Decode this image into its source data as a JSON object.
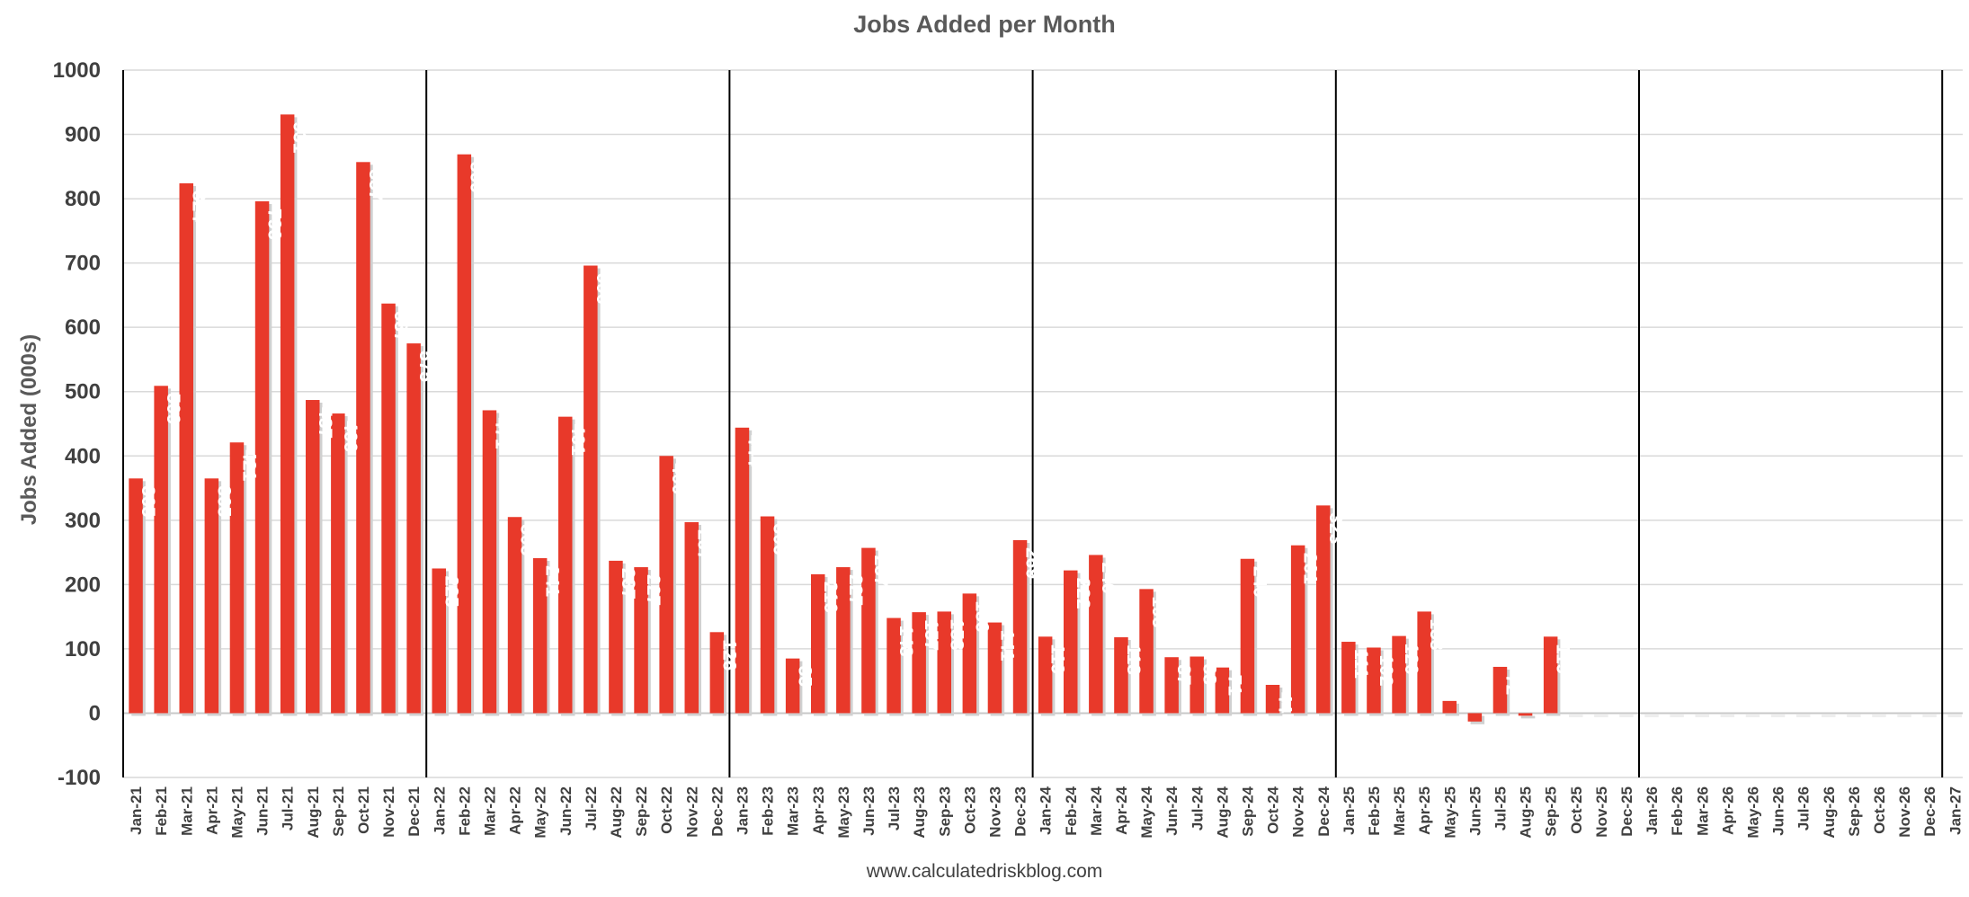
{
  "chart_data": {
    "type": "bar",
    "title": "Jobs Added per Month",
    "xlabel": "",
    "ylabel": "Jobs Added (000s)",
    "source": "www.calculatedriskblog.com",
    "ylim": [
      -100,
      1000
    ],
    "yticks": [
      -100,
      0,
      100,
      200,
      300,
      400,
      500,
      600,
      700,
      800,
      900,
      1000
    ],
    "bar_color": "#e8392a",
    "label_color": "#ffffff",
    "grid": true,
    "year_dividers": [
      "Jan-21",
      "Jan-22",
      "Jan-23",
      "Jan-24",
      "Jan-25",
      "Jan-26",
      "Jan-27"
    ],
    "categories": [
      "Jan-21",
      "Feb-21",
      "Mar-21",
      "Apr-21",
      "May-21",
      "Jun-21",
      "Jul-21",
      "Aug-21",
      "Sep-21",
      "Oct-21",
      "Nov-21",
      "Dec-21",
      "Jan-22",
      "Feb-22",
      "Mar-22",
      "Apr-22",
      "May-22",
      "Jun-22",
      "Jul-22",
      "Aug-22",
      "Sep-22",
      "Oct-22",
      "Nov-22",
      "Dec-22",
      "Jan-23",
      "Feb-23",
      "Mar-23",
      "Apr-23",
      "May-23",
      "Jun-23",
      "Jul-23",
      "Aug-23",
      "Sep-23",
      "Oct-23",
      "Nov-23",
      "Dec-23",
      "Jan-24",
      "Feb-24",
      "Mar-24",
      "Apr-24",
      "May-24",
      "Jun-24",
      "Jul-24",
      "Aug-24",
      "Sep-24",
      "Oct-24",
      "Nov-24",
      "Dec-24",
      "Jan-25",
      "Feb-25",
      "Mar-25",
      "Apr-25",
      "May-25",
      "Jun-25",
      "Jul-25",
      "Aug-25",
      "Sep-25",
      "Oct-25",
      "Nov-25",
      "Dec-25",
      "Jan-26",
      "Feb-26",
      "Mar-26",
      "Apr-26",
      "May-26",
      "Jun-26",
      "Jul-26",
      "Aug-26",
      "Sep-26",
      "Oct-26",
      "Nov-26",
      "Dec-26",
      "Jan-27"
    ],
    "values": [
      365,
      509,
      824,
      365,
      421,
      796,
      931,
      487,
      466,
      857,
      637,
      575,
      225,
      869,
      471,
      305,
      241,
      461,
      696,
      237,
      227,
      400,
      297,
      126,
      444,
      306,
      85,
      216,
      227,
      257,
      148,
      157,
      158,
      186,
      141,
      269,
      119,
      222,
      246,
      118,
      193,
      87,
      88,
      71,
      240,
      44,
      261,
      323,
      111,
      102,
      120,
      158,
      19,
      -13,
      72,
      -4,
      119,
      null,
      null,
      null,
      null,
      null,
      null,
      null,
      null,
      null,
      null,
      null,
      null,
      null,
      null,
      null,
      null
    ],
    "data_labels": [
      "365",
      "509",
      "824",
      "365",
      "421",
      "796",
      "931",
      "487",
      "466",
      "857",
      "637",
      "575",
      "225",
      "869",
      "471",
      "305",
      "241",
      "461",
      "696",
      "237",
      "227",
      "400",
      "297",
      "126",
      "444",
      "306",
      "85",
      "216",
      "227",
      "257",
      "148",
      "157",
      "158",
      "186",
      "141",
      "269",
      "119",
      "222",
      "246",
      "118",
      "193",
      "87",
      "88",
      "71",
      "240",
      "44",
      "261",
      "323",
      "111",
      "102",
      "120",
      "158",
      "",
      "",
      "72",
      "",
      "119",
      "",
      "",
      "",
      "",
      "",
      "",
      "",
      "",
      "",
      "",
      "",
      "",
      "",
      "",
      "",
      ""
    ]
  }
}
